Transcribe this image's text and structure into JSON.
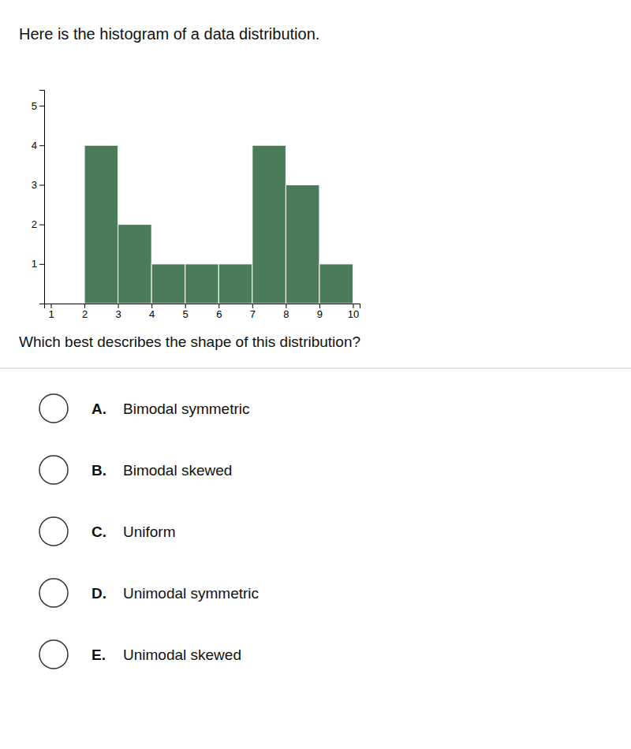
{
  "chart_data": {
    "type": "histogram",
    "title": "Here is the histogram of a data distribution.",
    "subtitle": "Which best describes the shape of this distribution?",
    "bins": [
      1,
      2,
      3,
      4,
      5,
      6,
      7,
      8,
      9,
      10
    ],
    "values": [
      0,
      4,
      2,
      1,
      1,
      1,
      4,
      3,
      1
    ],
    "color": "#4a7c59",
    "xlim": [
      0.8,
      10.2
    ],
    "ylim": [
      0,
      5.4
    ],
    "xticks": [
      1,
      2,
      3,
      4,
      5,
      6,
      7,
      8,
      9,
      10
    ],
    "yticks": [
      1,
      2,
      3,
      4,
      5
    ],
    "grid": false,
    "annotations": [
      "A. Bimodal symmetric",
      "B. Bimodal skewed",
      "C. Uniform",
      "D. Unimodal symmetric",
      "E. Unimodal skewed"
    ]
  }
}
